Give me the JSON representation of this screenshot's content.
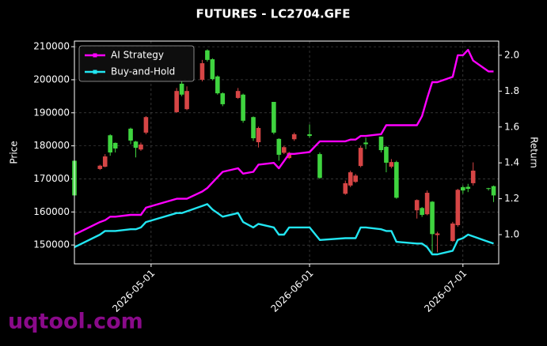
{
  "chart_data": {
    "type": "candlestick",
    "title": "FUTURES - LC2704.GFE",
    "ylabel": "Price",
    "y2label": "Return",
    "watermark": "uqtool.com",
    "x": [
      "2026-04-16",
      "2026-04-21",
      "2026-04-22",
      "2026-04-23",
      "2026-04-24",
      "2026-04-27",
      "2026-04-28",
      "2026-04-29",
      "2026-04-30",
      "2026-05-06",
      "2026-05-07",
      "2026-05-08",
      "2026-05-11",
      "2026-05-12",
      "2026-05-13",
      "2026-05-14",
      "2026-05-15",
      "2026-05-18",
      "2026-05-19",
      "2026-05-21",
      "2026-05-22",
      "2026-05-25",
      "2026-05-26",
      "2026-05-27",
      "2026-05-28",
      "2026-05-29",
      "2026-06-01",
      "2026-06-03",
      "2026-06-08",
      "2026-06-09",
      "2026-06-10",
      "2026-06-11",
      "2026-06-12",
      "2026-06-15",
      "2026-06-16",
      "2026-06-17",
      "2026-06-18",
      "2026-06-22",
      "2026-06-23",
      "2026-06-24",
      "2026-06-25",
      "2026-06-26",
      "2026-06-29",
      "2026-06-30",
      "2026-07-01",
      "2026-07-02",
      "2026-07-03",
      "2026-07-06",
      "2026-07-07"
    ],
    "open": [
      165000,
      174000,
      176800,
      178000,
      179200,
      181600,
      179400,
      180400,
      188700,
      196600,
      195500,
      196600,
      205000,
      206000,
      200200,
      195900,
      192600,
      196600,
      187600,
      182300,
      185400,
      184000,
      177300,
      179600,
      177900,
      183500,
      183000,
      170300,
      168700,
      172000,
      171000,
      179400,
      180500,
      178700,
      174900,
      175100,
      164300,
      163600,
      159100,
      165800,
      153300,
      153500,
      156500,
      166700,
      166500,
      167000,
      172500,
      167000,
      165000
    ],
    "high": [
      176000,
      174300,
      177500,
      183500,
      181000,
      185500,
      181500,
      181000,
      189000,
      197500,
      199500,
      198000,
      206000,
      209200,
      206500,
      201300,
      196200,
      197500,
      195800,
      188900,
      185800,
      193300,
      182300,
      180000,
      178200,
      184000,
      186500,
      178000,
      169500,
      172500,
      171500,
      180000,
      182500,
      182800,
      180000,
      176000,
      175500,
      163800,
      161500,
      166500,
      163300,
      154000,
      157000,
      167000,
      168000,
      168500,
      175000,
      167300,
      168000
    ],
    "low": [
      164500,
      172700,
      173500,
      177000,
      178000,
      180500,
      176500,
      178500,
      183500,
      190000,
      195000,
      190800,
      199500,
      205500,
      199800,
      195500,
      192000,
      194200,
      187000,
      181500,
      179500,
      183500,
      175500,
      177500,
      176000,
      181500,
      182500,
      170000,
      165200,
      167500,
      168800,
      173500,
      179000,
      178000,
      172000,
      173200,
      164000,
      158000,
      158500,
      159000,
      147500,
      147800,
      151000,
      155500,
      165500,
      166000,
      168000,
      166500,
      163000
    ],
    "close": [
      175500,
      173000,
      173700,
      183200,
      180900,
      185200,
      181300,
      178900,
      184000,
      190200,
      198800,
      191100,
      200000,
      208900,
      206200,
      201000,
      195900,
      194500,
      195500,
      188700,
      181100,
      193300,
      182100,
      177900,
      176300,
      182000,
      183500,
      177500,
      165500,
      168000,
      169100,
      173900,
      181000,
      182800,
      179700,
      173700,
      175100,
      160500,
      161200,
      159300,
      163100,
      153000,
      151200,
      156000,
      167500,
      167600,
      168700,
      167200,
      167800
    ],
    "up_color": "#3fd43f",
    "down_color": "#d64545",
    "series": [
      {
        "name": "AI Strategy",
        "color": "#ff00ff",
        "axis": "y2",
        "values": [
          1.0,
          1.07,
          1.08,
          1.1,
          1.1,
          1.11,
          1.11,
          1.11,
          1.15,
          1.2,
          1.2,
          1.2,
          1.24,
          1.26,
          1.29,
          1.32,
          1.35,
          1.37,
          1.34,
          1.35,
          1.39,
          1.4,
          1.37,
          1.41,
          1.45,
          1.45,
          1.46,
          1.52,
          1.52,
          1.53,
          1.53,
          1.55,
          1.55,
          1.56,
          1.61,
          1.61,
          1.61,
          1.61,
          1.66,
          1.76,
          1.85,
          1.85,
          1.88,
          2.0,
          2.0,
          2.03,
          1.97,
          1.91,
          1.91
        ]
      },
      {
        "name": "Buy-and-Hold",
        "color": "#22e6f2",
        "axis": "y2",
        "values": [
          0.93,
          1.0,
          1.02,
          1.02,
          1.02,
          1.03,
          1.03,
          1.04,
          1.07,
          1.12,
          1.12,
          1.13,
          1.16,
          1.17,
          1.14,
          1.12,
          1.1,
          1.12,
          1.07,
          1.04,
          1.06,
          1.04,
          1.0,
          1.0,
          1.04,
          1.04,
          1.04,
          0.97,
          0.98,
          0.98,
          0.98,
          1.04,
          1.04,
          1.03,
          1.02,
          1.02,
          0.96,
          0.95,
          0.95,
          0.93,
          0.89,
          0.89,
          0.91,
          0.97,
          0.98,
          1.0,
          0.99,
          0.96,
          0.95
        ]
      }
    ],
    "xlim": [
      "2026-04-16",
      "2026-07-08"
    ],
    "xticks": [
      "2026-05-01",
      "2026-06-01",
      "2026-07-01"
    ],
    "ylim": [
      144300,
      211700
    ],
    "yticks": [
      150000,
      160000,
      170000,
      180000,
      190000,
      200000,
      210000
    ],
    "y2lim": [
      0.837,
      2.079
    ],
    "y2ticks": [
      {
        "value": 1.0,
        "label": "1.0"
      },
      1.2,
      1.4,
      1.6,
      1.8,
      {
        "value": 2.0,
        "label": "2.0"
      }
    ],
    "grid": true,
    "legend": "upper left"
  }
}
